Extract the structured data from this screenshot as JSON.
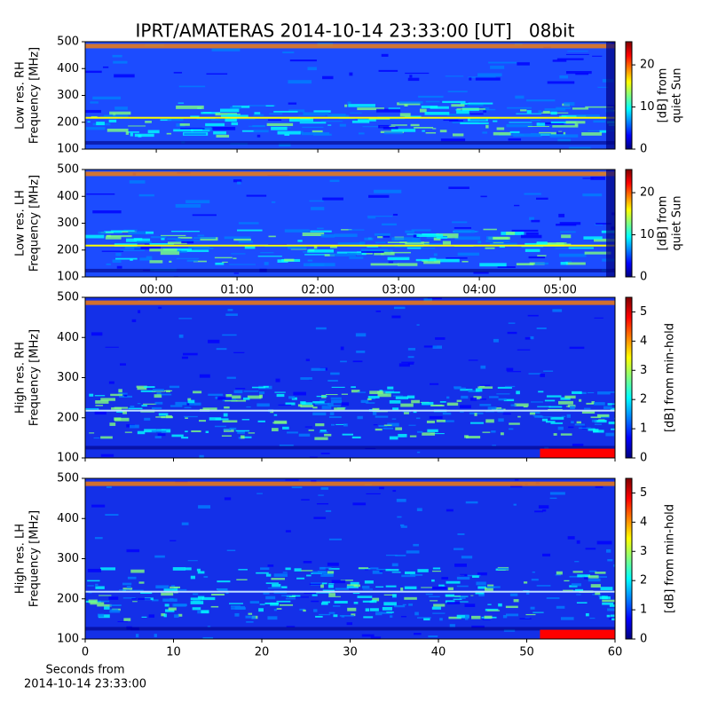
{
  "title": "IPRT/AMATERAS 2014-10-14 23:33:00 [UT]   08bit",
  "colormap": [
    "#00007f",
    "#0000ff",
    "#0080ff",
    "#00ffff",
    "#80ff80",
    "#ffff00",
    "#ff8000",
    "#ff0000",
    "#7f0000"
  ],
  "chart_data": [
    {
      "type": "spectrogram",
      "ylabel": [
        "Low res. RH",
        "Frequency [MHz]"
      ],
      "ylim": [
        100,
        500
      ],
      "yticks": [
        100,
        200,
        300,
        400,
        500
      ],
      "xlim": [
        -0.88,
        5.68
      ],
      "xticks": [
        {
          "value": 0,
          "label": "00:00"
        },
        {
          "value": 1,
          "label": "01:00"
        },
        {
          "value": 2,
          "label": "02:00"
        },
        {
          "value": 3,
          "label": "03:00"
        },
        {
          "value": 4,
          "label": "04:00"
        },
        {
          "value": 5,
          "label": "05:00"
        }
      ],
      "show_xtick_labels": false,
      "colorbar_label": [
        "[dB] from",
        "quiet Sun"
      ],
      "clim": [
        0,
        25.5
      ],
      "cticks": [
        0,
        10,
        20
      ]
    },
    {
      "type": "spectrogram",
      "ylabel": [
        "Low res. LH",
        "Frequency [MHz]"
      ],
      "ylim": [
        100,
        500
      ],
      "yticks": [
        100,
        200,
        300,
        400,
        500
      ],
      "xlim": [
        -0.88,
        5.68
      ],
      "xticks": [
        {
          "value": 0,
          "label": "00:00"
        },
        {
          "value": 1,
          "label": "01:00"
        },
        {
          "value": 2,
          "label": "02:00"
        },
        {
          "value": 3,
          "label": "03:00"
        },
        {
          "value": 4,
          "label": "04:00"
        },
        {
          "value": 5,
          "label": "05:00"
        }
      ],
      "show_xtick_labels": true,
      "colorbar_label": [
        "[dB] from",
        "quiet Sun"
      ],
      "clim": [
        0,
        25.5
      ],
      "cticks": [
        0,
        10,
        20
      ]
    },
    {
      "type": "spectrogram",
      "ylabel": [
        "High res. RH",
        "Frequency [MHz]"
      ],
      "ylim": [
        100,
        500
      ],
      "yticks": [
        100,
        200,
        300,
        400,
        500
      ],
      "xlim": [
        0,
        60
      ],
      "xticks": [
        0,
        10,
        20,
        30,
        40,
        50,
        60
      ],
      "show_xtick_labels": false,
      "colorbar_label": [
        "[dB] from min-hold"
      ],
      "clim": [
        0,
        5.5
      ],
      "cticks": [
        0,
        1,
        2,
        3,
        4,
        5
      ]
    },
    {
      "type": "spectrogram",
      "ylabel": [
        "High res. LH",
        "Frequency [MHz]"
      ],
      "ylim": [
        100,
        500
      ],
      "yticks": [
        100,
        200,
        300,
        400,
        500
      ],
      "xlim": [
        0,
        60
      ],
      "xticks": [
        0,
        10,
        20,
        30,
        40,
        50,
        60
      ],
      "show_xtick_labels": true,
      "xlabel": [
        "Seconds from",
        "2014-10-14 23:33:00"
      ],
      "colorbar_label": [
        "[dB] from min-hold"
      ],
      "clim": [
        0,
        5.5
      ],
      "cticks": [
        0,
        1,
        2,
        3,
        4,
        5
      ]
    }
  ]
}
